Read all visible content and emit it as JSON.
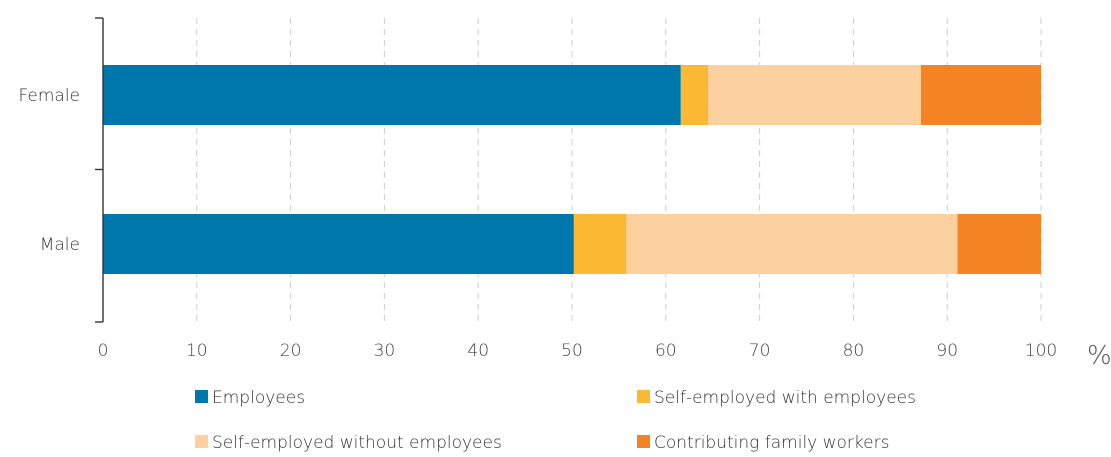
{
  "chart_data": {
    "type": "bar",
    "orientation": "horizontal",
    "stacked": true,
    "categories": [
      "Female",
      "Male"
    ],
    "series": [
      {
        "name": "Employees",
        "values": [
          61.6,
          50.2
        ],
        "color": "#0077AC"
      },
      {
        "name": "Self-employed with employees",
        "values": [
          2.9,
          5.6
        ],
        "color": "#FBB832"
      },
      {
        "name": "Self-employed without employees",
        "values": [
          22.7,
          35.3
        ],
        "color": "#FDD09F"
      },
      {
        "name": "Contributing family workers",
        "values": [
          12.8,
          8.9
        ],
        "color": "#F48423"
      }
    ],
    "xlim": [
      0,
      100
    ],
    "xticks": [
      "0",
      "10",
      "20",
      "30",
      "40",
      "50",
      "60",
      "70",
      "80",
      "90",
      "100"
    ],
    "x_unit_label": "%",
    "grid": "vertical dashed",
    "legend": "bottom"
  }
}
